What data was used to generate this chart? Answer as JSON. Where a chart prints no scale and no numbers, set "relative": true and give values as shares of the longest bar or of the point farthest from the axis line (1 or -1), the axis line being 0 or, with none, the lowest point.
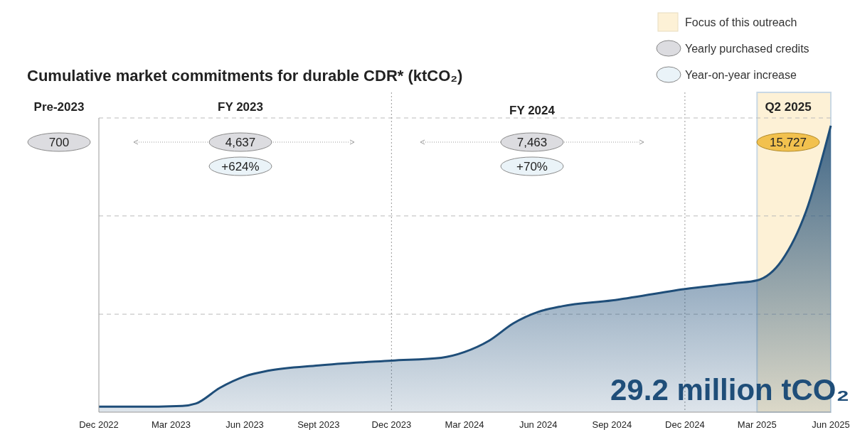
{
  "chart_data": {
    "type": "area",
    "title": "Cumulative market commitments for durable CDR* (ktCO₂)",
    "relative": true,
    "x": [
      "2022-12",
      "2023-01-15",
      "2023-03-15",
      "2023-04-01",
      "2023-05-01",
      "2023-06-01",
      "2023-07-01",
      "2023-09-01",
      "2023-12-01",
      "2024-02-01",
      "2024-03-01",
      "2024-04-01",
      "2024-05-01",
      "2024-06-01",
      "2024-07-01",
      "2024-09-01",
      "2024-12-01",
      "2025-02-01",
      "2025-03-01",
      "2025-04-01",
      "2025-05-01",
      "2025-06"
    ],
    "series": [
      {
        "color": "#1f4e79",
        "values": [
          0.019,
          0.019,
          0.022,
          0.03,
          0.085,
          0.125,
          0.145,
          0.163,
          0.18,
          0.19,
          0.21,
          0.25,
          0.31,
          0.35,
          0.37,
          0.39,
          0.43,
          0.45,
          0.46,
          0.53,
          0.7,
          1.0
        ]
      }
    ],
    "xlim": [
      "2022-12",
      "2025-06"
    ],
    "xticks": [
      {
        "value": "2022-12",
        "label": "Dec 2022"
      },
      {
        "value": "2023-03",
        "label": "Mar 2023"
      },
      {
        "value": "2023-06",
        "label": "Jun 2023"
      },
      {
        "value": "2023-09",
        "label": "Sept 2023"
      },
      {
        "value": "2023-12",
        "label": "Dec 2023"
      },
      {
        "value": "2024-03",
        "label": "Mar 2024"
      },
      {
        "value": "2024-06",
        "label": "Jun 2024"
      },
      {
        "value": "2024-09",
        "label": "Sep 2024"
      },
      {
        "value": "2024-12",
        "label": "Dec 2024"
      },
      {
        "value": "2025-03",
        "label": "Mar 2025"
      },
      {
        "value": "2025-06",
        "label": "Jun 2025"
      }
    ],
    "ref_lines": [
      {
        "axis": "y",
        "value": 0.342,
        "line_style": "dashed",
        "color": "#bbbbbb"
      },
      {
        "axis": "y",
        "value": 0.685,
        "line_style": "dashed",
        "color": "#bbbbbb"
      },
      {
        "axis": "y",
        "value": 1.027,
        "line_style": "dashed",
        "color": "#bbbbbb"
      },
      {
        "axis": "x",
        "value": "2023-12",
        "line_style": "dotted",
        "color": "#999999"
      },
      {
        "axis": "x",
        "value": "2024-12",
        "line_style": "dotted",
        "color": "#999999"
      }
    ],
    "bands": [
      {
        "axis": "x",
        "from": "2025-03",
        "to": "2025-06",
        "label": "Focus of this outreach",
        "color": "#fdf1d6"
      }
    ],
    "annotations": [
      "Pre-2023",
      "FY 2023",
      "FY 2024",
      "Q2 2025",
      "700",
      "4,637",
      "+624%",
      "7,463",
      "+70%",
      "15,727",
      "Yearly purchased credits",
      "Year-on-year increase",
      "29.2 million tCO₂"
    ]
  }
}
